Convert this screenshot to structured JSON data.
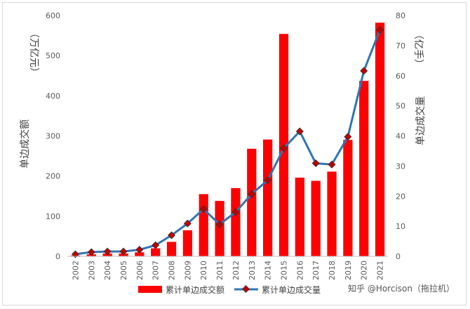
{
  "chart_data": {
    "type": "bar",
    "categories": [
      "2002",
      "2003",
      "2004",
      "2005",
      "2006",
      "2007",
      "2008",
      "2009",
      "2010",
      "2011",
      "2012",
      "2013",
      "2014",
      "2015",
      "2016",
      "2017",
      "2018",
      "2019",
      "2020",
      "2021"
    ],
    "series": [
      {
        "name": "累计单边成交额",
        "type": "bar",
        "axis": "left",
        "color": "#ff0000",
        "values": [
          2,
          5,
          7,
          7,
          10,
          20,
          36,
          65,
          155,
          138,
          170,
          268,
          291,
          554,
          196,
          188,
          211,
          290,
          437,
          582
        ]
      },
      {
        "name": "累计单边成交量",
        "type": "line",
        "axis": "right",
        "color": "#2e75b6",
        "marker_color": "#c00000",
        "values": [
          0.7,
          1.4,
          1.6,
          1.6,
          2.2,
          3.7,
          7.0,
          10.9,
          15.7,
          10.6,
          14.7,
          20.7,
          25.3,
          35.9,
          41.5,
          30.9,
          30.5,
          39.7,
          61.6,
          75.2
        ]
      }
    ],
    "y_left": {
      "label": "单边成交额",
      "unit": "（万亿元）",
      "min": 0,
      "max": 600,
      "step": 100
    },
    "y_right": {
      "label": "单边成交量",
      "unit": "（亿手）",
      "min": 0,
      "max": 80,
      "step": 10
    },
    "legend_position": "bottom",
    "grid": false
  },
  "watermark": "知乎 @Horcison（拖拉机）"
}
